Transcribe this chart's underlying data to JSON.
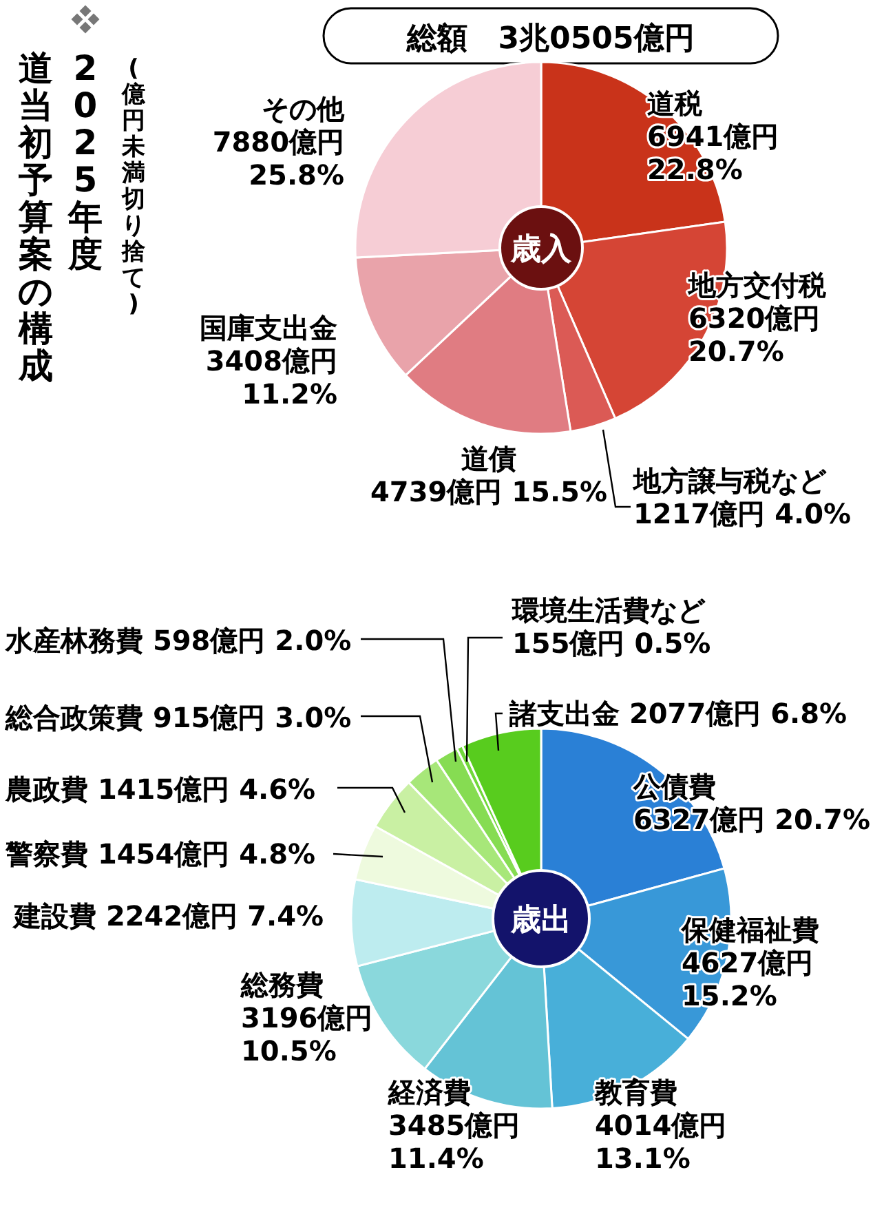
{
  "chart_data": [
    {
      "type": "donut",
      "title": "2025年度",
      "subtitle": "道当初予算案の構成",
      "annotations": [
        "(億円未満切り捨て)",
        "総額　3兆0505億円",
        "歳入"
      ],
      "categories": [
        "道税",
        "地方交付税",
        "地方譲与税など",
        "道債",
        "国庫支出金",
        "その他"
      ],
      "values": [
        6941,
        6320,
        1217,
        4739,
        3408,
        7880
      ],
      "value_labels": [
        "6941億円 22.8%",
        "6320億円 20.7%",
        "1217億円 4.0%",
        "4739億円 15.5%",
        "3408億円 11.2%",
        "7880億円 25.8%"
      ],
      "colors": [
        "#c9331a",
        "#d54535",
        "#db5a55",
        "#e07c82",
        "#e9a3aa",
        "#f6cdd5"
      ]
    },
    {
      "type": "donut",
      "annotations": [
        "歳出"
      ],
      "categories": [
        "公債費",
        "保健福祉費",
        "教育費",
        "経済費",
        "総務費",
        "建設費",
        "警察費",
        "農政費",
        "総合政策費",
        "水産林務費",
        "環境生活費など",
        "諸支出金"
      ],
      "values": [
        6327,
        4627,
        4014,
        3485,
        3196,
        2242,
        1454,
        1415,
        915,
        598,
        155,
        2077
      ],
      "value_labels": [
        "6327億円 20.7%",
        "4627億円 15.2%",
        "4014億円 13.1%",
        "3485億円 11.4%",
        "3196億円 10.5%",
        "2242億円 7.4%",
        "1454億円 4.8%",
        "1415億円 4.6%",
        "915億円 3.0%",
        "598億円 2.0%",
        "155億円 0.5%",
        "2077億円 6.8%"
      ],
      "colors": [
        "#2a80d6",
        "#3898d8",
        "#48afd9",
        "#64c3d6",
        "#8ad8dc",
        "#bdecef",
        "#eefade",
        "#c9f0a3",
        "#a7e779",
        "#86dc52",
        "#70d83a",
        "#58cc1e"
      ]
    }
  ]
}
